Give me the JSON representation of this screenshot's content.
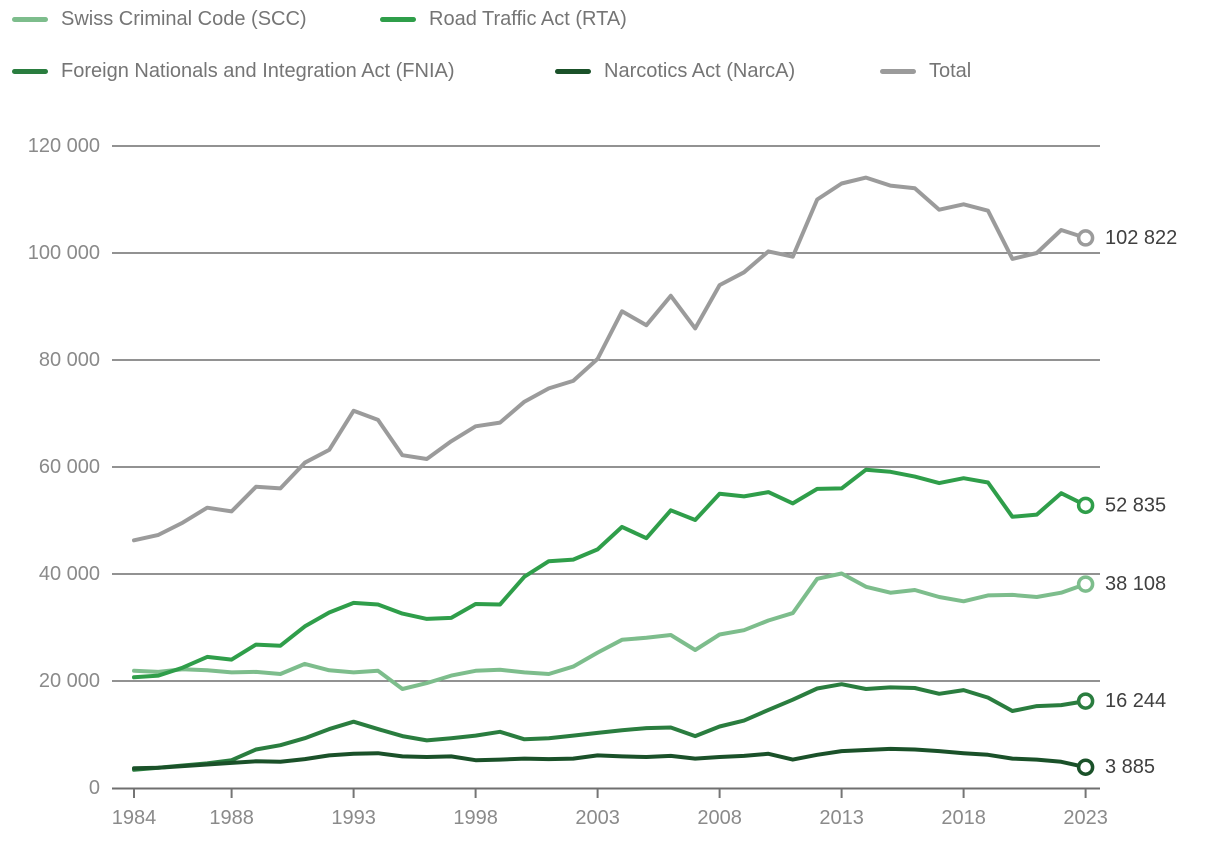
{
  "chart_data": {
    "type": "line",
    "title": "",
    "xlabel": "",
    "ylabel": "",
    "grid": true,
    "legend_position": "top",
    "ylim": [
      0,
      120000
    ],
    "y_ticks": [
      0,
      20000,
      40000,
      60000,
      80000,
      100000,
      120000
    ],
    "y_tick_labels": [
      "0",
      "20 000",
      "40 000",
      "60 000",
      "80 000",
      "100 000",
      "120 000"
    ],
    "x_ticks": [
      1984,
      1988,
      1993,
      1998,
      2003,
      2008,
      2013,
      2018,
      2023
    ],
    "x_tick_labels": [
      "1984",
      "1988",
      "1993",
      "1998",
      "2003",
      "2008",
      "2013",
      "2018",
      "2023"
    ],
    "x": [
      1984,
      1985,
      1986,
      1987,
      1988,
      1989,
      1990,
      1991,
      1992,
      1993,
      1994,
      1995,
      1996,
      1997,
      1998,
      1999,
      2000,
      2001,
      2002,
      2003,
      2004,
      2005,
      2006,
      2007,
      2008,
      2009,
      2010,
      2011,
      2012,
      2013,
      2014,
      2015,
      2016,
      2017,
      2018,
      2019,
      2020,
      2021,
      2022,
      2023
    ],
    "series": [
      {
        "key": "scc",
        "name": "Swiss Criminal Code (SCC)",
        "color": "#7dbd8c",
        "end_label": "38 108",
        "end_value": 38108,
        "values": [
          21900,
          21700,
          22200,
          22000,
          21600,
          21700,
          21300,
          23200,
          22000,
          21600,
          21900,
          18500,
          19600,
          21000,
          21900,
          22100,
          21600,
          21300,
          22700,
          25300,
          27700,
          28100,
          28600,
          25800,
          28700,
          29500,
          31300,
          32700,
          39100,
          40100,
          37600,
          36500,
          37000,
          35700,
          34900,
          36000,
          36100,
          35700,
          36500,
          38108
        ]
      },
      {
        "key": "rta",
        "name": "Road Traffic Act (RTA)",
        "color": "#2f9e4a",
        "end_label": "52 835",
        "end_value": 52835,
        "values": [
          20700,
          21000,
          22500,
          24500,
          24000,
          26800,
          26600,
          30200,
          32800,
          34600,
          34300,
          32600,
          31600,
          31800,
          34400,
          34300,
          39500,
          42400,
          42700,
          44600,
          48800,
          46700,
          51900,
          50100,
          55000,
          54500,
          55300,
          53200,
          55900,
          56000,
          59500,
          59100,
          58200,
          57000,
          57900,
          57100,
          50700,
          51100,
          55100,
          52835
        ]
      },
      {
        "key": "fnia",
        "name": "Foreign Nationals and Integration Act (FNIA)",
        "color": "#2a7d3f",
        "end_label": "16 244",
        "end_value": 16244,
        "values": [
          3400,
          3800,
          4200,
          4600,
          5200,
          7200,
          8000,
          9300,
          11000,
          12400,
          11000,
          9700,
          8900,
          9300,
          9800,
          10500,
          9100,
          9300,
          9800,
          10300,
          10800,
          11200,
          11300,
          9700,
          11500,
          12600,
          14600,
          16500,
          18600,
          19400,
          18500,
          18800,
          18700,
          17600,
          18300,
          16900,
          14400,
          15300,
          15500,
          16244
        ]
      },
      {
        "key": "narca",
        "name": "Narcotics Act (NarcA)",
        "color": "#1a5129",
        "end_label": "3 885",
        "end_value": 3885,
        "values": [
          3700,
          3800,
          4100,
          4400,
          4700,
          5000,
          4900,
          5400,
          6100,
          6400,
          6500,
          5900,
          5800,
          5900,
          5200,
          5300,
          5500,
          5400,
          5500,
          6100,
          5900,
          5800,
          6000,
          5500,
          5800,
          6000,
          6400,
          5300,
          6200,
          6900,
          7100,
          7300,
          7200,
          6900,
          6500,
          6200,
          5500,
          5300,
          4900,
          3885
        ]
      },
      {
        "key": "total",
        "name": "Total",
        "color": "#9b9b9b",
        "end_label": "102 822",
        "end_value": 102822,
        "values": [
          46300,
          47300,
          49600,
          52400,
          51700,
          56300,
          56000,
          60800,
          63200,
          70500,
          68800,
          62200,
          61500,
          64800,
          67600,
          68300,
          72200,
          74700,
          76100,
          80200,
          89100,
          86500,
          92000,
          85900,
          94000,
          96400,
          100300,
          99300,
          110000,
          113000,
          114100,
          112600,
          112100,
          108100,
          109100,
          107900,
          98900,
          100000,
          104300,
          102822
        ]
      }
    ]
  },
  "colors": {
    "background": "#ffffff",
    "grid": "#6f6f6f",
    "axis_label": "#8a8a8a",
    "legend_text": "#757575",
    "end_label_text": "#3f3f3f"
  }
}
